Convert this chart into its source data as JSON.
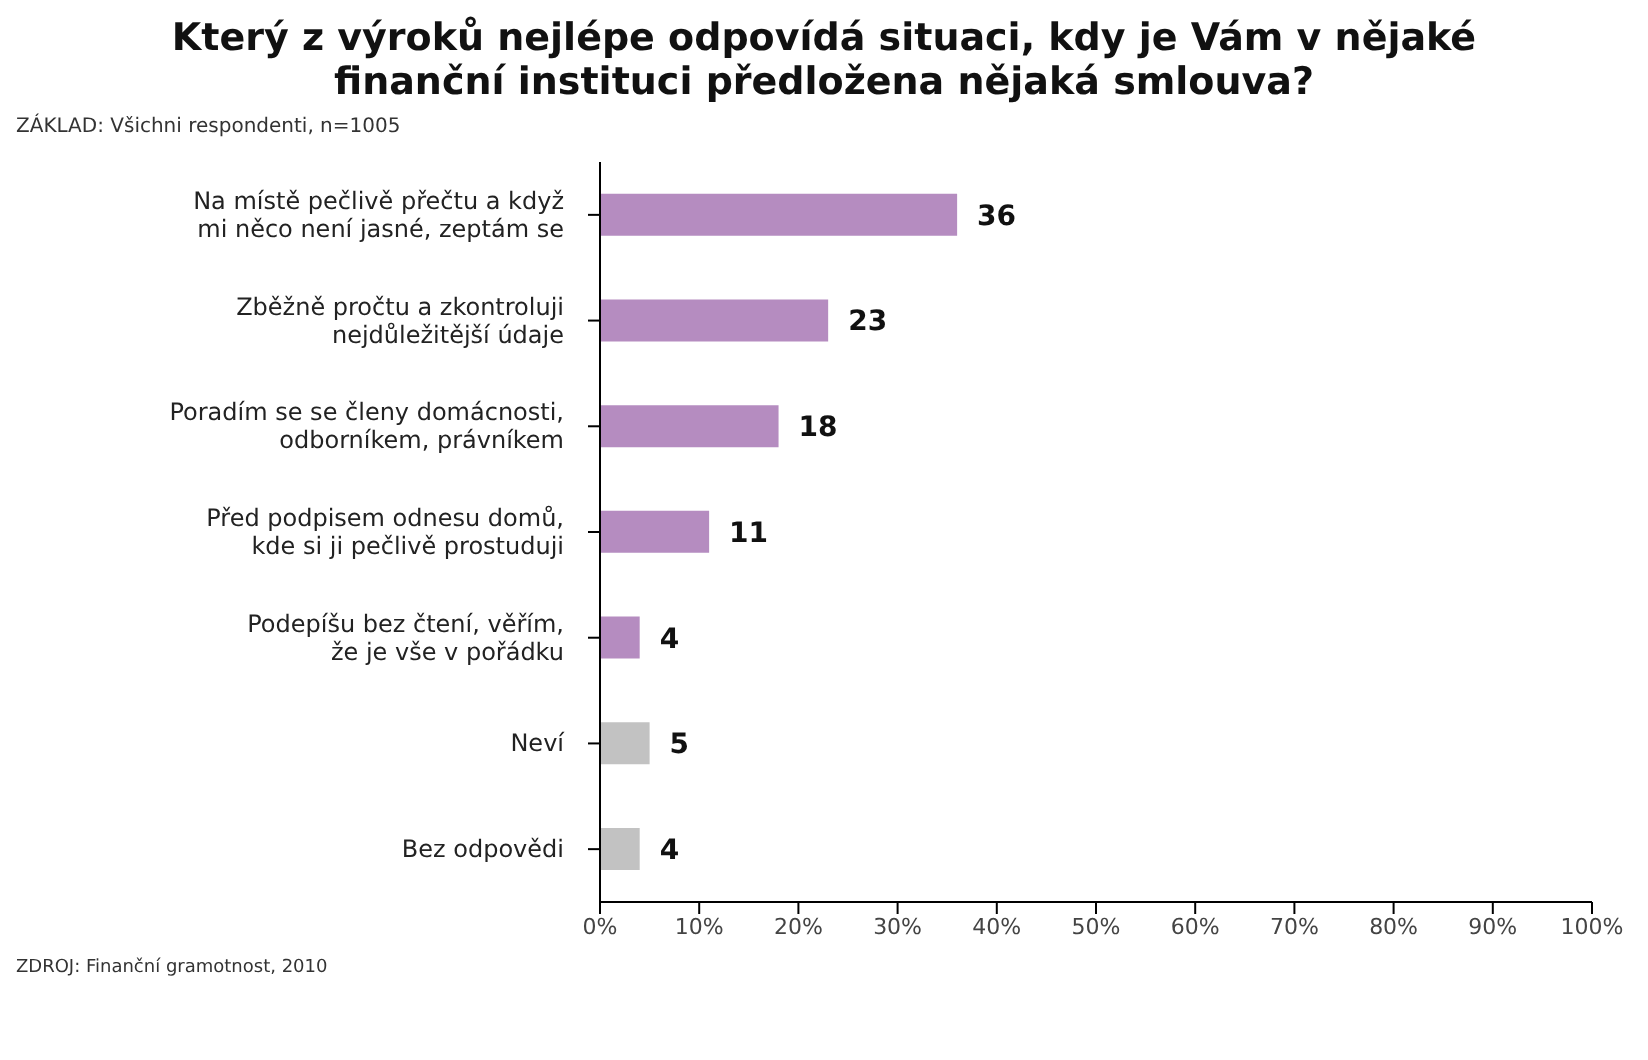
{
  "chart_data": {
    "type": "bar",
    "orientation": "horizontal",
    "title": "Který z výroků nejlépe odpovídá situaci, kdy je Vám v nějaké\nfinanční instituci předložena nějaká smlouva?",
    "subtitle": "ZÁKLAD: Všichni respondenti, n=1005",
    "categories": [
      "Na místě pečlivě přečtu a když\nmi něco není jasné, zeptám se",
      "Zběžně pročtu a zkontroluji\nnejdůležitější údaje",
      "Poradím se se členy domácnosti,\nodborníkem, právníkem",
      "Před podpisem odnesu domů,\nkde si ji pečlivě prostuduji",
      "Podepíšu bez čtení, věřím,\nže je vše v pořádku",
      "Neví",
      "Bez odpovědi"
    ],
    "values": [
      36,
      23,
      18,
      11,
      4,
      5,
      4
    ],
    "colors": [
      "#b58cc0",
      "#b58cc0",
      "#b58cc0",
      "#b58cc0",
      "#b58cc0",
      "#c2c2c2",
      "#c2c2c2"
    ],
    "xlim": [
      0,
      100
    ],
    "xticks": [
      {
        "value": 0,
        "label": "0%"
      },
      {
        "value": 10,
        "label": "10%"
      },
      {
        "value": 20,
        "label": "20%"
      },
      {
        "value": 30,
        "label": "30%"
      },
      {
        "value": 40,
        "label": "40%"
      },
      {
        "value": 50,
        "label": "50%"
      },
      {
        "value": 60,
        "label": "60%"
      },
      {
        "value": 70,
        "label": "70%"
      },
      {
        "value": 80,
        "label": "80%"
      },
      {
        "value": 90,
        "label": "90%"
      },
      {
        "value": 100,
        "label": "100%"
      }
    ],
    "data_labels": true,
    "grid": false,
    "legend": false,
    "annotations": [
      "ZDROJ: Finanční gramotnost, 2010"
    ]
  }
}
